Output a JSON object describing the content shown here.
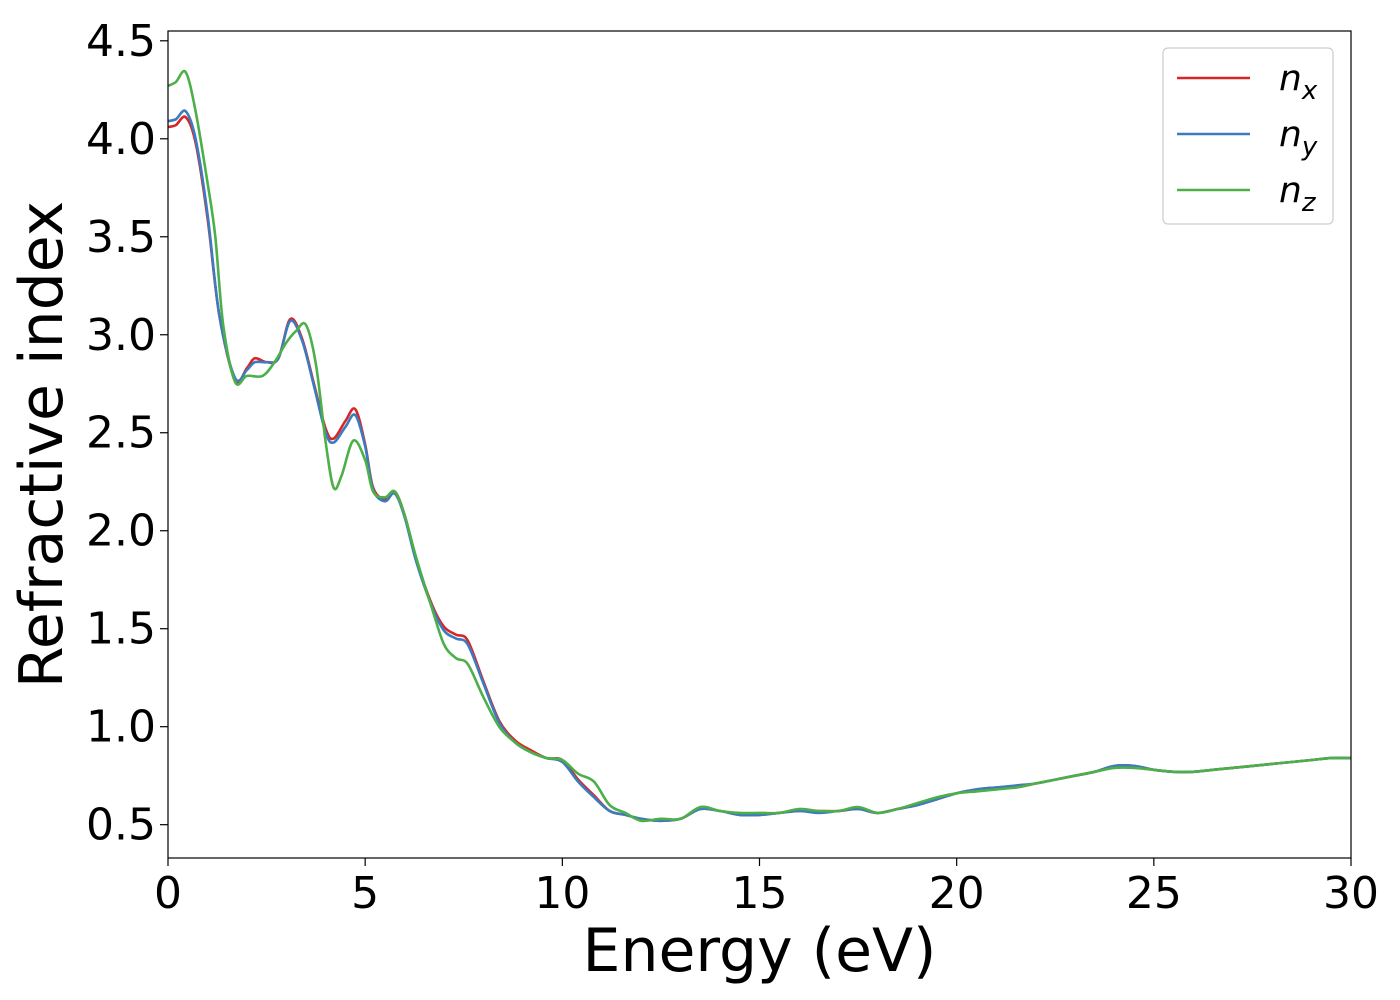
{
  "chart_data": {
    "type": "line",
    "title": "",
    "xlabel": "Energy (eV)",
    "ylabel": "Refractive index",
    "xlim": [
      0,
      30
    ],
    "ylim": [
      0.33,
      4.55
    ],
    "xticks": [
      0,
      5,
      10,
      15,
      20,
      25,
      30
    ],
    "yticks": [
      0.5,
      1.0,
      1.5,
      2.0,
      2.5,
      3.0,
      3.5,
      4.0,
      4.5
    ],
    "xtick_labels": [
      "0",
      "5",
      "10",
      "15",
      "20",
      "25",
      "30"
    ],
    "ytick_labels": [
      "0.5",
      "1.0",
      "1.5",
      "2.0",
      "2.5",
      "3.0",
      "3.5",
      "4.0",
      "4.5"
    ],
    "grid": false,
    "legend_position": "top-right",
    "series": [
      {
        "name": "n",
        "subscript": "x",
        "color": "#d62728",
        "points": [
          [
            0,
            4.06
          ],
          [
            0.2,
            4.07
          ],
          [
            0.45,
            4.11
          ],
          [
            0.7,
            3.98
          ],
          [
            1.0,
            3.6
          ],
          [
            1.3,
            3.1
          ],
          [
            1.7,
            2.77
          ],
          [
            2.0,
            2.83
          ],
          [
            2.2,
            2.88
          ],
          [
            2.5,
            2.86
          ],
          [
            2.8,
            2.88
          ],
          [
            3.1,
            3.08
          ],
          [
            3.4,
            2.98
          ],
          [
            3.7,
            2.75
          ],
          [
            4.0,
            2.52
          ],
          [
            4.2,
            2.47
          ],
          [
            4.5,
            2.56
          ],
          [
            4.75,
            2.62
          ],
          [
            5.0,
            2.44
          ],
          [
            5.2,
            2.22
          ],
          [
            5.5,
            2.16
          ],
          [
            5.75,
            2.2
          ],
          [
            6.0,
            2.08
          ],
          [
            6.3,
            1.85
          ],
          [
            6.7,
            1.62
          ],
          [
            7.0,
            1.51
          ],
          [
            7.3,
            1.47
          ],
          [
            7.6,
            1.44
          ],
          [
            8.0,
            1.23
          ],
          [
            8.4,
            1.03
          ],
          [
            8.8,
            0.93
          ],
          [
            9.2,
            0.88
          ],
          [
            9.6,
            0.84
          ],
          [
            10.0,
            0.83
          ],
          [
            10.4,
            0.73
          ],
          [
            10.8,
            0.65
          ],
          [
            11.2,
            0.57
          ],
          [
            11.6,
            0.55
          ],
          [
            12.0,
            0.53
          ],
          [
            12.5,
            0.52
          ],
          [
            13.0,
            0.53
          ],
          [
            13.5,
            0.58
          ],
          [
            14.0,
            0.57
          ],
          [
            14.5,
            0.55
          ],
          [
            15.0,
            0.55
          ],
          [
            15.5,
            0.56
          ],
          [
            16.0,
            0.57
          ],
          [
            16.5,
            0.57
          ],
          [
            17.0,
            0.57
          ],
          [
            17.5,
            0.58
          ],
          [
            18.0,
            0.56
          ],
          [
            18.5,
            0.58
          ],
          [
            19.0,
            0.6
          ],
          [
            19.5,
            0.63
          ],
          [
            20.0,
            0.66
          ],
          [
            20.5,
            0.68
          ],
          [
            21.0,
            0.69
          ],
          [
            21.5,
            0.69
          ],
          [
            22.0,
            0.71
          ],
          [
            22.5,
            0.73
          ],
          [
            23.0,
            0.75
          ],
          [
            23.5,
            0.77
          ],
          [
            24.0,
            0.8
          ],
          [
            24.5,
            0.8
          ],
          [
            25.0,
            0.78
          ],
          [
            25.5,
            0.77
          ],
          [
            26.0,
            0.77
          ],
          [
            26.5,
            0.78
          ],
          [
            27.0,
            0.79
          ],
          [
            27.5,
            0.8
          ],
          [
            28.0,
            0.81
          ],
          [
            28.5,
            0.82
          ],
          [
            29.0,
            0.83
          ],
          [
            29.5,
            0.84
          ],
          [
            30.0,
            0.84
          ]
        ]
      },
      {
        "name": "n",
        "subscript": "y",
        "color": "#3c7bbf",
        "points": [
          [
            0,
            4.09
          ],
          [
            0.2,
            4.1
          ],
          [
            0.45,
            4.14
          ],
          [
            0.7,
            4.0
          ],
          [
            1.0,
            3.62
          ],
          [
            1.3,
            3.1
          ],
          [
            1.7,
            2.78
          ],
          [
            2.0,
            2.82
          ],
          [
            2.2,
            2.86
          ],
          [
            2.5,
            2.86
          ],
          [
            2.8,
            2.88
          ],
          [
            3.1,
            3.07
          ],
          [
            3.4,
            2.97
          ],
          [
            3.7,
            2.74
          ],
          [
            4.0,
            2.5
          ],
          [
            4.2,
            2.45
          ],
          [
            4.5,
            2.53
          ],
          [
            4.75,
            2.59
          ],
          [
            5.0,
            2.43
          ],
          [
            5.2,
            2.21
          ],
          [
            5.5,
            2.15
          ],
          [
            5.75,
            2.19
          ],
          [
            6.0,
            2.07
          ],
          [
            6.3,
            1.84
          ],
          [
            6.7,
            1.61
          ],
          [
            7.0,
            1.49
          ],
          [
            7.3,
            1.45
          ],
          [
            7.6,
            1.42
          ],
          [
            8.0,
            1.22
          ],
          [
            8.4,
            1.02
          ],
          [
            8.8,
            0.92
          ],
          [
            9.2,
            0.87
          ],
          [
            9.6,
            0.84
          ],
          [
            10.0,
            0.82
          ],
          [
            10.4,
            0.72
          ],
          [
            10.8,
            0.64
          ],
          [
            11.2,
            0.57
          ],
          [
            11.6,
            0.55
          ],
          [
            12.0,
            0.53
          ],
          [
            12.5,
            0.52
          ],
          [
            13.0,
            0.53
          ],
          [
            13.5,
            0.58
          ],
          [
            14.0,
            0.57
          ],
          [
            14.5,
            0.55
          ],
          [
            15.0,
            0.55
          ],
          [
            15.5,
            0.56
          ],
          [
            16.0,
            0.57
          ],
          [
            16.5,
            0.56
          ],
          [
            17.0,
            0.57
          ],
          [
            17.5,
            0.58
          ],
          [
            18.0,
            0.56
          ],
          [
            18.5,
            0.58
          ],
          [
            19.0,
            0.6
          ],
          [
            19.5,
            0.63
          ],
          [
            20.0,
            0.66
          ],
          [
            20.5,
            0.68
          ],
          [
            21.0,
            0.69
          ],
          [
            21.5,
            0.7
          ],
          [
            22.0,
            0.71
          ],
          [
            22.5,
            0.73
          ],
          [
            23.0,
            0.75
          ],
          [
            23.5,
            0.77
          ],
          [
            24.0,
            0.8
          ],
          [
            24.5,
            0.8
          ],
          [
            25.0,
            0.78
          ],
          [
            25.5,
            0.77
          ],
          [
            26.0,
            0.77
          ],
          [
            26.5,
            0.78
          ],
          [
            27.0,
            0.79
          ],
          [
            27.5,
            0.8
          ],
          [
            28.0,
            0.81
          ],
          [
            28.5,
            0.82
          ],
          [
            29.0,
            0.83
          ],
          [
            29.5,
            0.84
          ],
          [
            30.0,
            0.84
          ]
        ]
      },
      {
        "name": "n",
        "subscript": "z",
        "color": "#4daf4a",
        "points": [
          [
            0,
            4.27
          ],
          [
            0.2,
            4.29
          ],
          [
            0.45,
            4.34
          ],
          [
            0.7,
            4.14
          ],
          [
            1.0,
            3.78
          ],
          [
            1.2,
            3.5
          ],
          [
            1.4,
            3.05
          ],
          [
            1.7,
            2.76
          ],
          [
            2.0,
            2.79
          ],
          [
            2.4,
            2.79
          ],
          [
            2.7,
            2.86
          ],
          [
            3.0,
            2.96
          ],
          [
            3.25,
            3.02
          ],
          [
            3.5,
            3.05
          ],
          [
            3.75,
            2.85
          ],
          [
            4.0,
            2.45
          ],
          [
            4.2,
            2.22
          ],
          [
            4.4,
            2.28
          ],
          [
            4.7,
            2.46
          ],
          [
            5.0,
            2.36
          ],
          [
            5.2,
            2.2
          ],
          [
            5.5,
            2.17
          ],
          [
            5.75,
            2.2
          ],
          [
            6.0,
            2.08
          ],
          [
            6.3,
            1.86
          ],
          [
            6.7,
            1.6
          ],
          [
            7.0,
            1.42
          ],
          [
            7.3,
            1.35
          ],
          [
            7.6,
            1.32
          ],
          [
            8.0,
            1.15
          ],
          [
            8.4,
            1.0
          ],
          [
            8.8,
            0.92
          ],
          [
            9.2,
            0.87
          ],
          [
            9.6,
            0.84
          ],
          [
            10.0,
            0.83
          ],
          [
            10.4,
            0.76
          ],
          [
            10.8,
            0.72
          ],
          [
            11.2,
            0.6
          ],
          [
            11.6,
            0.56
          ],
          [
            12.0,
            0.52
          ],
          [
            12.5,
            0.53
          ],
          [
            13.0,
            0.53
          ],
          [
            13.5,
            0.59
          ],
          [
            14.0,
            0.57
          ],
          [
            14.5,
            0.56
          ],
          [
            15.0,
            0.56
          ],
          [
            15.5,
            0.56
          ],
          [
            16.0,
            0.58
          ],
          [
            16.5,
            0.57
          ],
          [
            17.0,
            0.57
          ],
          [
            17.5,
            0.59
          ],
          [
            18.0,
            0.56
          ],
          [
            18.5,
            0.58
          ],
          [
            19.0,
            0.61
          ],
          [
            19.5,
            0.64
          ],
          [
            20.0,
            0.66
          ],
          [
            20.5,
            0.67
          ],
          [
            21.0,
            0.68
          ],
          [
            21.5,
            0.69
          ],
          [
            22.0,
            0.71
          ],
          [
            22.5,
            0.73
          ],
          [
            23.0,
            0.75
          ],
          [
            23.5,
            0.77
          ],
          [
            24.0,
            0.79
          ],
          [
            24.5,
            0.79
          ],
          [
            25.0,
            0.78
          ],
          [
            25.5,
            0.77
          ],
          [
            26.0,
            0.77
          ],
          [
            26.5,
            0.78
          ],
          [
            27.0,
            0.79
          ],
          [
            27.5,
            0.8
          ],
          [
            28.0,
            0.81
          ],
          [
            28.5,
            0.82
          ],
          [
            29.0,
            0.83
          ],
          [
            29.5,
            0.84
          ],
          [
            30.0,
            0.84
          ]
        ]
      }
    ]
  }
}
